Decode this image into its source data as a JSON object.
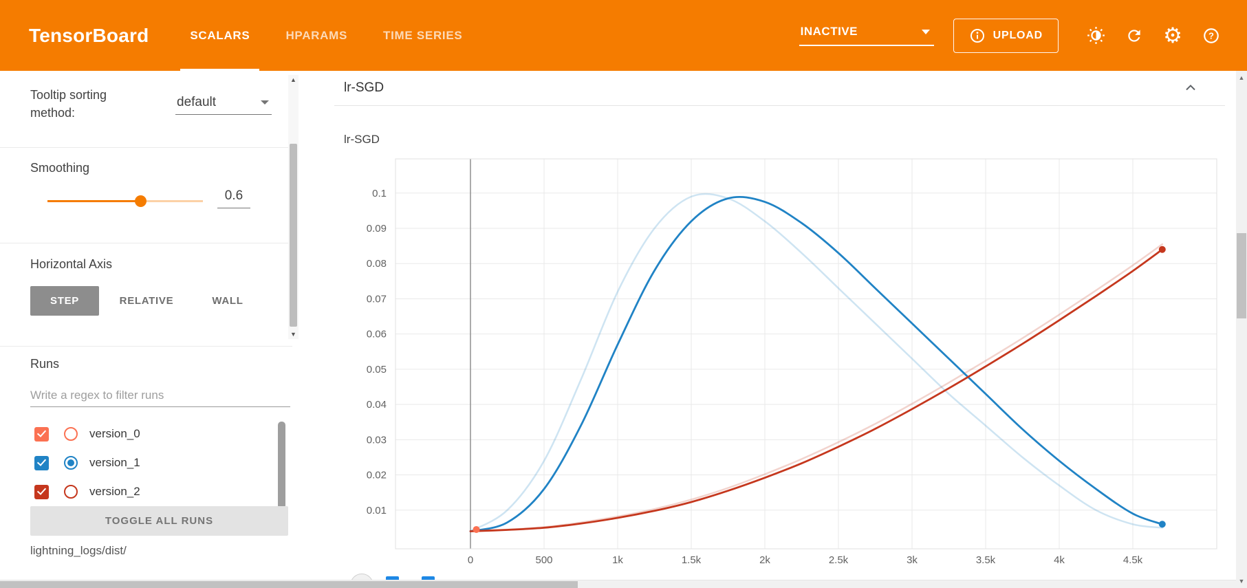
{
  "header": {
    "logo": "TensorBoard",
    "tabs": [
      {
        "label": "SCALARS",
        "active": true
      },
      {
        "label": "HPARAMS",
        "active": false
      },
      {
        "label": "TIME SERIES",
        "active": false
      }
    ],
    "run_state": "INACTIVE",
    "upload_label": "UPLOAD",
    "icons": [
      "info-icon",
      "brightness-icon",
      "refresh-icon",
      "gear-icon",
      "help-icon"
    ]
  },
  "sidebar": {
    "tooltip_sorting": {
      "label": "Tooltip sorting method:",
      "value": "default"
    },
    "smoothing": {
      "label": "Smoothing",
      "value": "0.6"
    },
    "horizontal_axis": {
      "label": "Horizontal Axis",
      "options": [
        {
          "label": "STEP",
          "active": true
        },
        {
          "label": "RELATIVE",
          "active": false
        },
        {
          "label": "WALL",
          "active": false
        }
      ]
    },
    "runs": {
      "title": "Runs",
      "filter_placeholder": "Write a regex to filter runs",
      "items": [
        {
          "name": "version_0",
          "color": "#fb7152",
          "checked": true,
          "radio_selected": false
        },
        {
          "name": "version_1",
          "color": "#2083c5",
          "checked": true,
          "radio_selected": true
        },
        {
          "name": "version_2",
          "color": "#c5371d",
          "checked": true,
          "radio_selected": false
        }
      ],
      "toggle_all_label": "TOGGLE ALL RUNS",
      "logdir": "lightning_logs/dist/"
    }
  },
  "main": {
    "section_title": "lr-SGD"
  },
  "chart_data": {
    "type": "line",
    "title": "lr-SGD",
    "smoothing": 0.6,
    "grid": true,
    "x_ticks": [
      0,
      500,
      1000,
      1500,
      2000,
      2500,
      3000,
      3500,
      4000,
      4500
    ],
    "x_tick_labels": [
      "0",
      "500",
      "1k",
      "1.5k",
      "2k",
      "2.5k",
      "3k",
      "3.5k",
      "4k",
      "4.5k"
    ],
    "y_ticks": [
      0.01,
      0.02,
      0.03,
      0.04,
      0.05,
      0.06,
      0.07,
      0.08,
      0.09,
      0.1
    ],
    "y_tick_labels": [
      "0.01",
      "0.02",
      "0.03",
      "0.04",
      "0.05",
      "0.06",
      "0.07",
      "0.08",
      "0.09",
      "0.1"
    ],
    "x_range": [
      -510,
      5070
    ],
    "y_range": [
      0,
      0.11
    ],
    "series": [
      {
        "name": "version_0",
        "color": "#fb7152",
        "raw": [
          [
            40,
            0.0045
          ]
        ],
        "smoothed": [
          [
            40,
            0.0045
          ]
        ]
      },
      {
        "name": "version_1",
        "color": "#2083c5",
        "raw": [
          [
            0,
            0.004
          ],
          [
            250,
            0.01
          ],
          [
            500,
            0.024
          ],
          [
            750,
            0.047
          ],
          [
            1000,
            0.072
          ],
          [
            1250,
            0.09
          ],
          [
            1500,
            0.099
          ],
          [
            1750,
            0.0985
          ],
          [
            2000,
            0.092
          ],
          [
            2250,
            0.083
          ],
          [
            2500,
            0.073
          ],
          [
            2750,
            0.063
          ],
          [
            3000,
            0.053
          ],
          [
            3250,
            0.043
          ],
          [
            3500,
            0.034
          ],
          [
            3750,
            0.025
          ],
          [
            4000,
            0.017
          ],
          [
            4250,
            0.01
          ],
          [
            4500,
            0.006
          ],
          [
            4700,
            0.005
          ]
        ],
        "smoothed": [
          [
            0,
            0.004
          ],
          [
            250,
            0.0065
          ],
          [
            500,
            0.016
          ],
          [
            750,
            0.034
          ],
          [
            1000,
            0.057
          ],
          [
            1250,
            0.078
          ],
          [
            1500,
            0.092
          ],
          [
            1750,
            0.0985
          ],
          [
            2000,
            0.0975
          ],
          [
            2250,
            0.0915
          ],
          [
            2500,
            0.083
          ],
          [
            2750,
            0.073
          ],
          [
            3000,
            0.063
          ],
          [
            3250,
            0.053
          ],
          [
            3500,
            0.043
          ],
          [
            3750,
            0.033
          ],
          [
            4000,
            0.024
          ],
          [
            4250,
            0.016
          ],
          [
            4500,
            0.009
          ],
          [
            4700,
            0.006
          ]
        ]
      },
      {
        "name": "version_2",
        "color": "#c5371d",
        "raw": [
          [
            0,
            0.004
          ],
          [
            250,
            0.0045
          ],
          [
            500,
            0.0052
          ],
          [
            750,
            0.0065
          ],
          [
            1000,
            0.0082
          ],
          [
            1250,
            0.0103
          ],
          [
            1500,
            0.013
          ],
          [
            1750,
            0.0163
          ],
          [
            2000,
            0.0202
          ],
          [
            2250,
            0.0245
          ],
          [
            2500,
            0.0293
          ],
          [
            2750,
            0.0345
          ],
          [
            3000,
            0.0402
          ],
          [
            3250,
            0.0462
          ],
          [
            3500,
            0.0524
          ],
          [
            3750,
            0.0588
          ],
          [
            4000,
            0.0655
          ],
          [
            4250,
            0.0724
          ],
          [
            4500,
            0.0795
          ],
          [
            4700,
            0.0855
          ]
        ],
        "smoothed": [
          [
            0,
            0.004
          ],
          [
            250,
            0.0044
          ],
          [
            500,
            0.005
          ],
          [
            750,
            0.0062
          ],
          [
            1000,
            0.0078
          ],
          [
            1250,
            0.0098
          ],
          [
            1500,
            0.0123
          ],
          [
            1750,
            0.0155
          ],
          [
            2000,
            0.0192
          ],
          [
            2250,
            0.0233
          ],
          [
            2500,
            0.028
          ],
          [
            2750,
            0.0331
          ],
          [
            3000,
            0.0387
          ],
          [
            3250,
            0.0446
          ],
          [
            3500,
            0.0508
          ],
          [
            3750,
            0.0572
          ],
          [
            4000,
            0.0639
          ],
          [
            4250,
            0.0708
          ],
          [
            4500,
            0.0779
          ],
          [
            4700,
            0.084
          ]
        ]
      }
    ]
  }
}
